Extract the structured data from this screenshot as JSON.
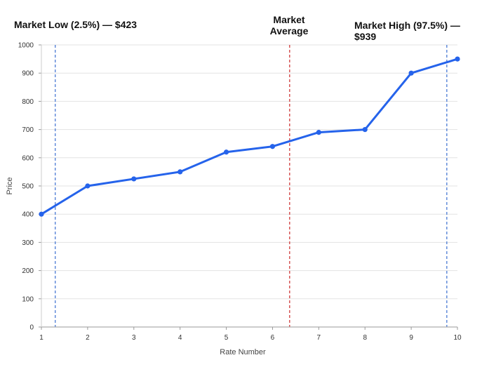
{
  "annotations": {
    "low": "Market Low (2.5%) — $423",
    "avg_line1": "Market",
    "avg_line2": "Average",
    "high": "Market High (97.5%) — $939"
  },
  "chart_data": {
    "type": "line",
    "title": "",
    "xlabel": "Rate Number",
    "ylabel": "Price",
    "x": [
      1,
      2,
      3,
      4,
      5,
      6,
      7,
      8,
      9,
      10
    ],
    "series": [
      {
        "values": [
          400,
          500,
          525,
          550,
          620,
          640,
          690,
          700,
          900,
          950
        ],
        "color": "#2563eb"
      }
    ],
    "xlim": [
      1,
      10
    ],
    "ylim": [
      0,
      1000
    ],
    "xticks": [
      1,
      2,
      3,
      4,
      5,
      6,
      7,
      8,
      9,
      10
    ],
    "yticks": [
      0,
      100,
      200,
      300,
      400,
      500,
      600,
      700,
      800,
      900,
      1000
    ],
    "grid": "horizontal",
    "reference_lines": [
      {
        "x": 1.3,
        "color": "#3b6fd1",
        "style": "dashed"
      },
      {
        "x": 6.37,
        "color": "#cc2b2b",
        "style": "dashed"
      },
      {
        "x": 9.77,
        "color": "#3b6fd1",
        "style": "dashed"
      }
    ]
  }
}
